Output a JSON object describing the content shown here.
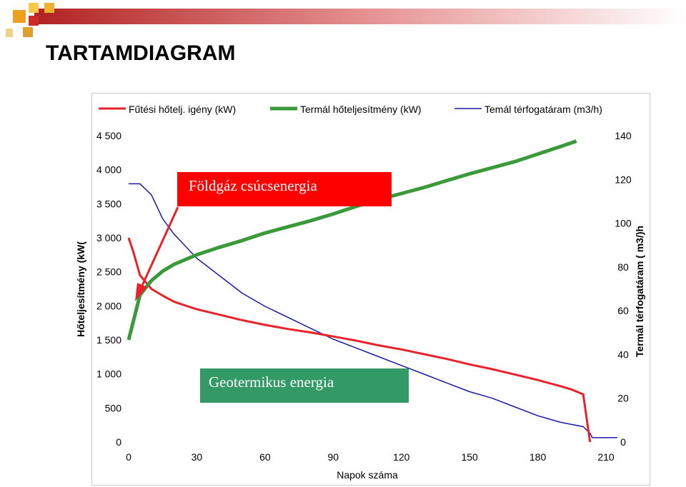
{
  "page": {
    "title": "TARTAMDIAGRAM"
  },
  "colors": {
    "heat_demand": "#e8222a",
    "thermal_power": "#3a9a3a",
    "volume_flow": "#1a1aa8",
    "peak_box": "#ff0000",
    "geo_box": "#339966"
  },
  "chart_data": {
    "type": "line",
    "title": "",
    "xlabel": "Napok száma",
    "ylabel": "Hőteljesítmény (kW(",
    "y2label": "Termál térfogatáram ( m3/)h",
    "xlim": [
      0,
      210
    ],
    "ylim": [
      0,
      4500
    ],
    "y2lim": [
      0,
      140
    ],
    "x_ticks": [
      "0",
      "30",
      "60",
      "90",
      "120",
      "150",
      "180",
      "210"
    ],
    "y_ticks": [
      "0",
      "500",
      "1 000",
      "1 500",
      "2 000",
      "2 500",
      "3 000",
      "3 500",
      "4 000",
      "4 500"
    ],
    "y2_ticks": [
      "0",
      "20",
      "40",
      "60",
      "80",
      "100",
      "120",
      "140"
    ],
    "grid": false,
    "legend_position": "top",
    "series": [
      {
        "name": "Fűtési hőtelj. igény (kW)",
        "axis": "left",
        "x": [
          0,
          2,
          5,
          10,
          15,
          20,
          30,
          40,
          50,
          60,
          70,
          80,
          90,
          100,
          110,
          120,
          130,
          140,
          150,
          160,
          170,
          180,
          190,
          195,
          200,
          203
        ],
        "y": [
          3000,
          2800,
          2450,
          2250,
          2150,
          2060,
          1950,
          1870,
          1790,
          1720,
          1660,
          1610,
          1550,
          1490,
          1420,
          1360,
          1290,
          1220,
          1140,
          1070,
          990,
          910,
          820,
          770,
          700,
          0
        ]
      },
      {
        "name": "Termál hőteljesítmény (kW)",
        "axis": "left",
        "x": [
          0,
          5,
          10,
          15,
          20,
          30,
          40,
          50,
          60,
          70,
          80,
          90,
          100,
          110,
          120,
          130,
          140,
          150,
          160,
          170,
          180,
          190,
          197
        ],
        "y": [
          1500,
          2160,
          2370,
          2510,
          2610,
          2750,
          2860,
          2960,
          3070,
          3160,
          3250,
          3350,
          3460,
          3560,
          3650,
          3740,
          3840,
          3940,
          4030,
          4120,
          4230,
          4340,
          4420
        ]
      },
      {
        "name": "Temál térfogatáram (m3/h)",
        "axis": "right",
        "x": [
          0,
          5,
          10,
          15,
          20,
          30,
          40,
          50,
          60,
          70,
          80,
          90,
          100,
          110,
          120,
          130,
          140,
          150,
          160,
          170,
          180,
          190,
          200,
          203,
          204,
          215
        ],
        "y": [
          118,
          118,
          113,
          102,
          95,
          84,
          76,
          68,
          62,
          57,
          52,
          47,
          43,
          39,
          35,
          31,
          27,
          23,
          20,
          16,
          12,
          9,
          7,
          4,
          2,
          2
        ]
      }
    ],
    "annotations": [
      {
        "text": "Földgáz csúcsenergia",
        "arrow_to": {
          "x": 5,
          "y": 2450
        }
      },
      {
        "text": "Geotermikus energia"
      }
    ]
  }
}
